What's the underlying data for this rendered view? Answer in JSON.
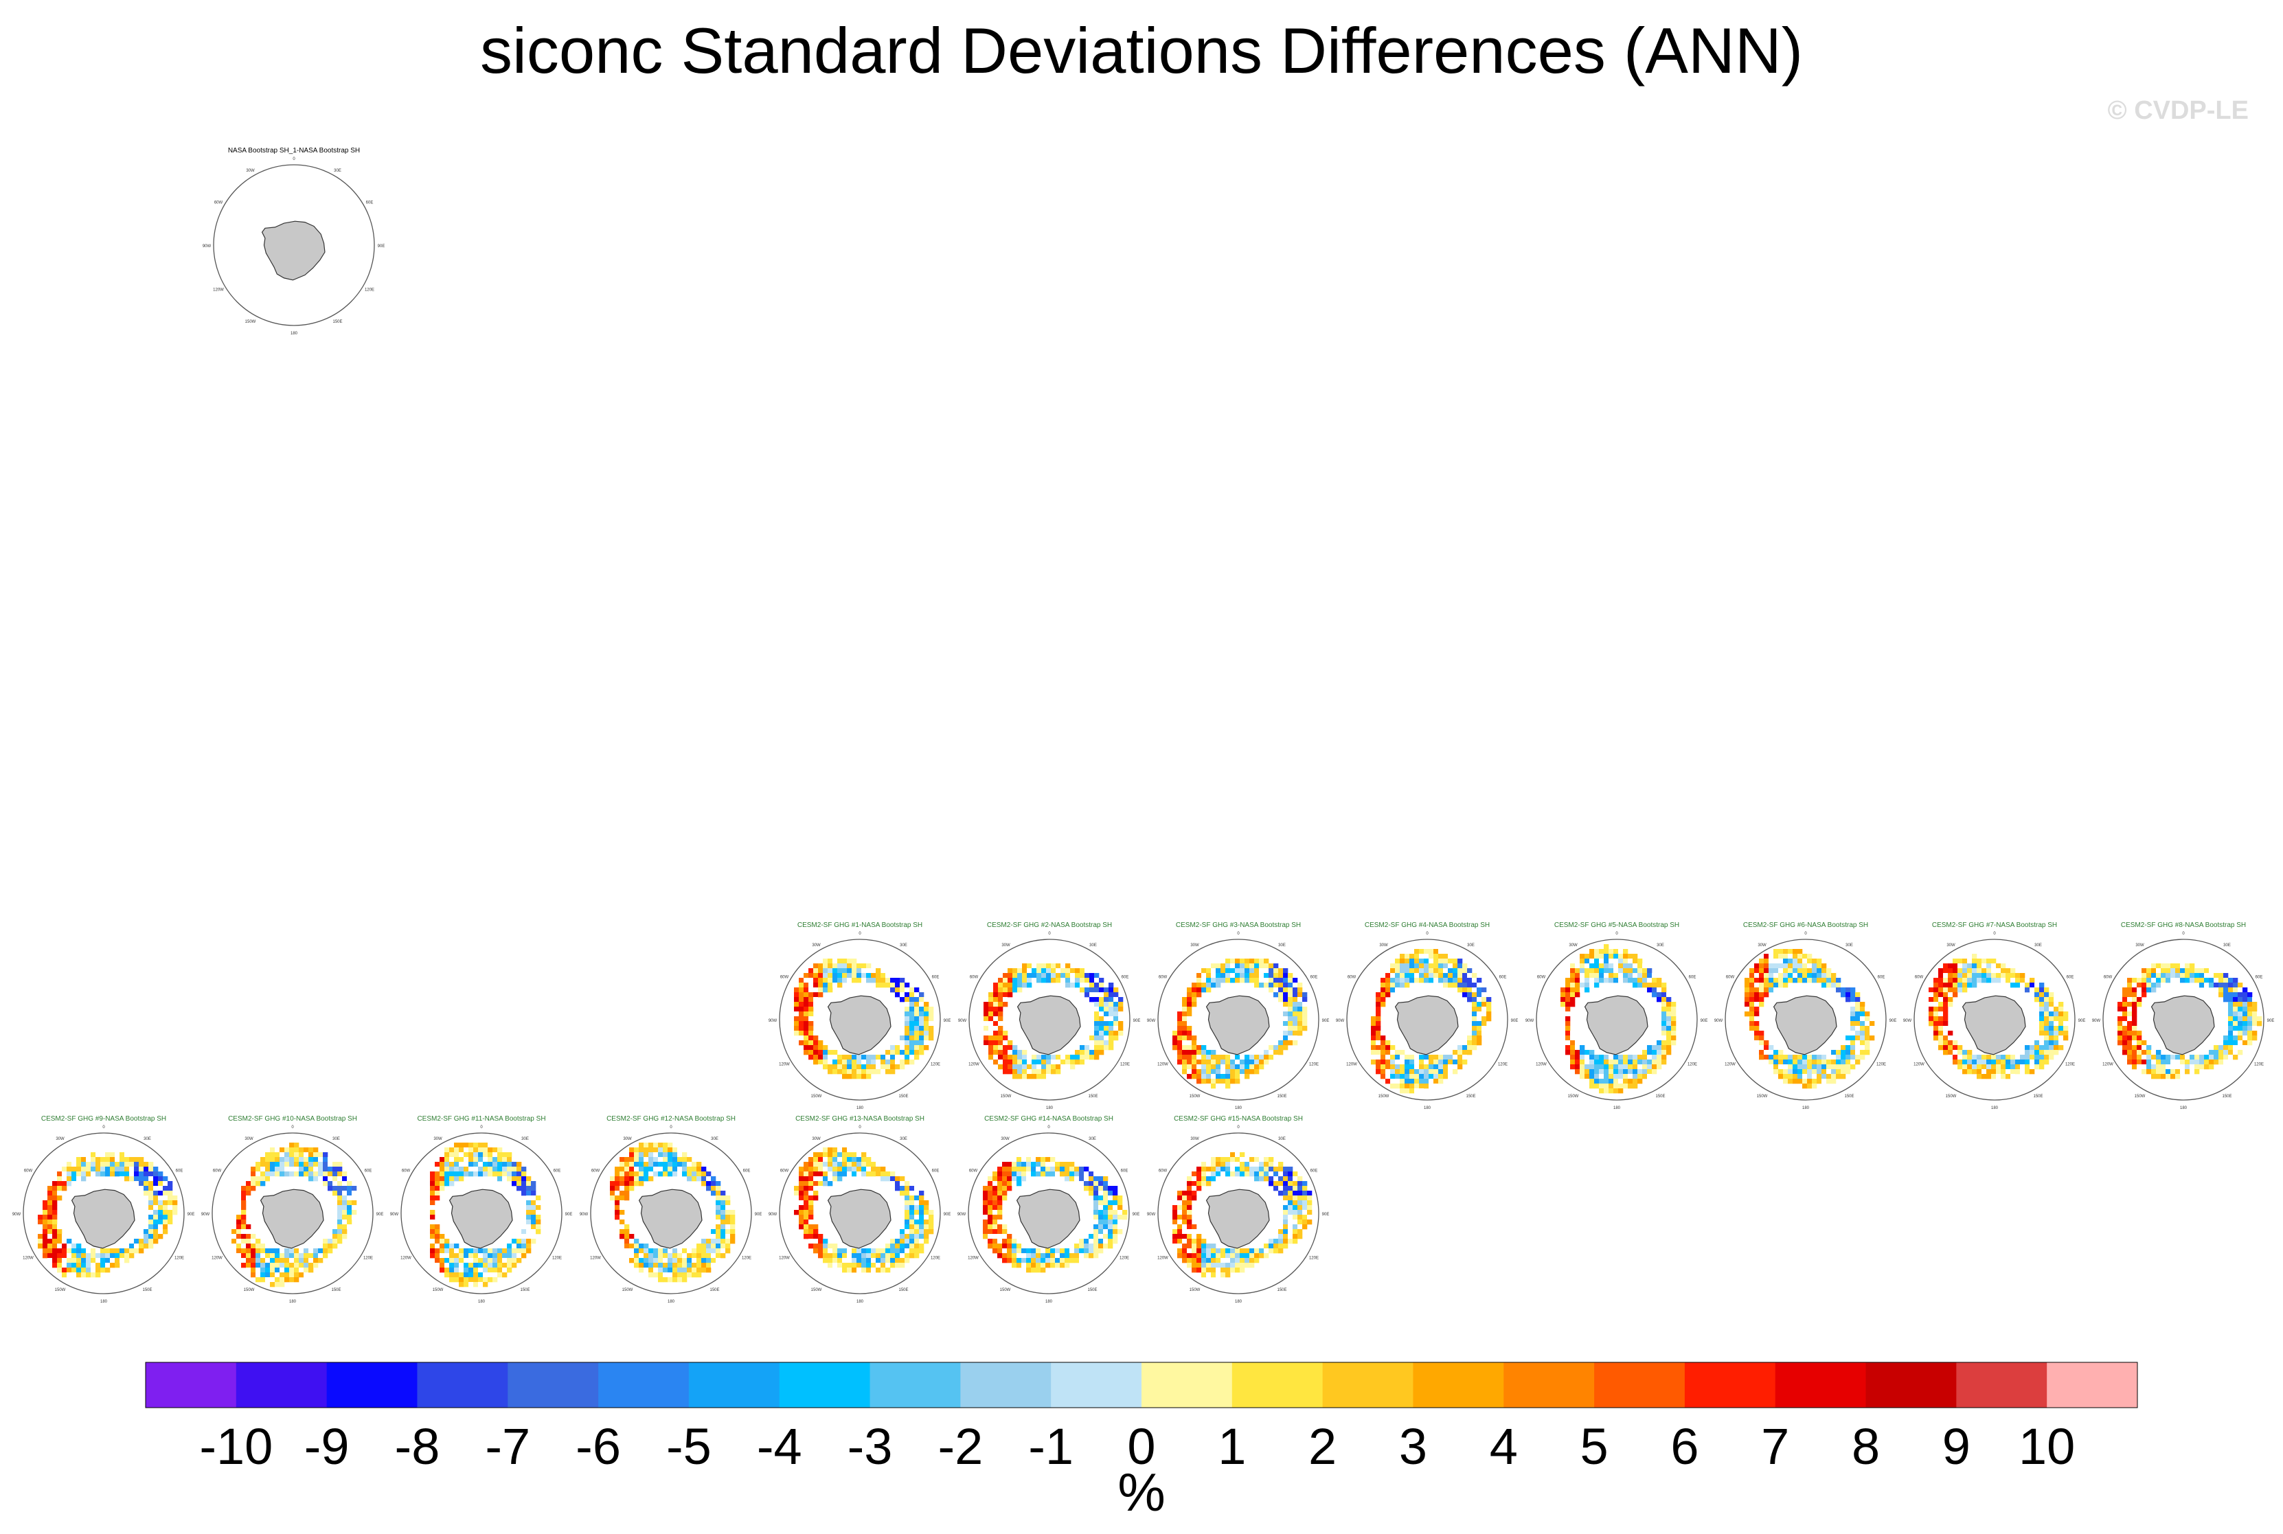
{
  "title": "siconc Standard Deviations Differences (ANN)",
  "watermark": "© CVDP-LE",
  "colors": {
    "land": "#c8c8c8",
    "coast": "#333333",
    "panel_title_model": "#2e7d32",
    "panel_title_obs": "#000000",
    "colorbar": [
      "#7f1ff0",
      "#3f10f2",
      "#0a0aff",
      "#2e46e8",
      "#3a6be0",
      "#2a85f2",
      "#14a3f7",
      "#00c0ff",
      "#55c3f2",
      "#9ad0ee",
      "#bfe3f6",
      "#fff8a0",
      "#ffe640",
      "#ffc820",
      "#ffa800",
      "#ff8400",
      "#ff5a00",
      "#ff1e00",
      "#e60000",
      "#c80000",
      "#dc3e3e",
      "#ffb0b0"
    ]
  },
  "chart_data": {
    "type": "heatmap",
    "title": "siconc Standard Deviations Differences (ANN)",
    "colorbar": {
      "levels": [
        -10,
        -9,
        -8,
        -7,
        -6,
        -5,
        -4,
        -3,
        -2,
        -1,
        0,
        1,
        2,
        3,
        4,
        5,
        6,
        7,
        8,
        9,
        10
      ],
      "tick_labels": [
        "-10",
        "-9",
        "-8",
        "-7",
        "-6",
        "-5",
        "-4",
        "-3",
        "-2",
        "-1",
        "0",
        "1",
        "2",
        "3",
        "4",
        "5",
        "6",
        "7",
        "8",
        "9",
        "10"
      ],
      "units": "%"
    },
    "panels": [
      {
        "title": "NASA Bootstrap SH_1-NASA Bootstrap SH",
        "kind": "obs"
      },
      {
        "title": "CESM2-SF GHG #1-NASA Bootstrap SH",
        "kind": "model"
      },
      {
        "title": "CESM2-SF GHG #2-NASA Bootstrap SH",
        "kind": "model"
      },
      {
        "title": "CESM2-SF GHG #3-NASA Bootstrap SH",
        "kind": "model"
      },
      {
        "title": "CESM2-SF GHG #4-NASA Bootstrap SH",
        "kind": "model"
      },
      {
        "title": "CESM2-SF GHG #5-NASA Bootstrap SH",
        "kind": "model"
      },
      {
        "title": "CESM2-SF GHG #6-NASA Bootstrap SH",
        "kind": "model"
      },
      {
        "title": "CESM2-SF GHG #7-NASA Bootstrap SH",
        "kind": "model"
      },
      {
        "title": "CESM2-SF GHG #8-NASA Bootstrap SH",
        "kind": "model"
      },
      {
        "title": "CESM2-SF GHG #9-NASA Bootstrap SH",
        "kind": "model"
      },
      {
        "title": "CESM2-SF GHG #10-NASA Bootstrap SH",
        "kind": "model"
      },
      {
        "title": "CESM2-SF GHG #11-NASA Bootstrap SH",
        "kind": "model"
      },
      {
        "title": "CESM2-SF GHG #12-NASA Bootstrap SH",
        "kind": "model"
      },
      {
        "title": "CESM2-SF GHG #13-NASA Bootstrap SH",
        "kind": "model"
      },
      {
        "title": "CESM2-SF GHG #14-NASA Bootstrap SH",
        "kind": "model"
      },
      {
        "title": "CESM2-SF GHG #15-NASA Bootstrap SH",
        "kind": "model"
      }
    ],
    "map_labels": [
      "0",
      "30E",
      "60E",
      "90E",
      "120E",
      "150E",
      "180",
      "150W",
      "120W",
      "90W",
      "60W",
      "30W"
    ]
  }
}
